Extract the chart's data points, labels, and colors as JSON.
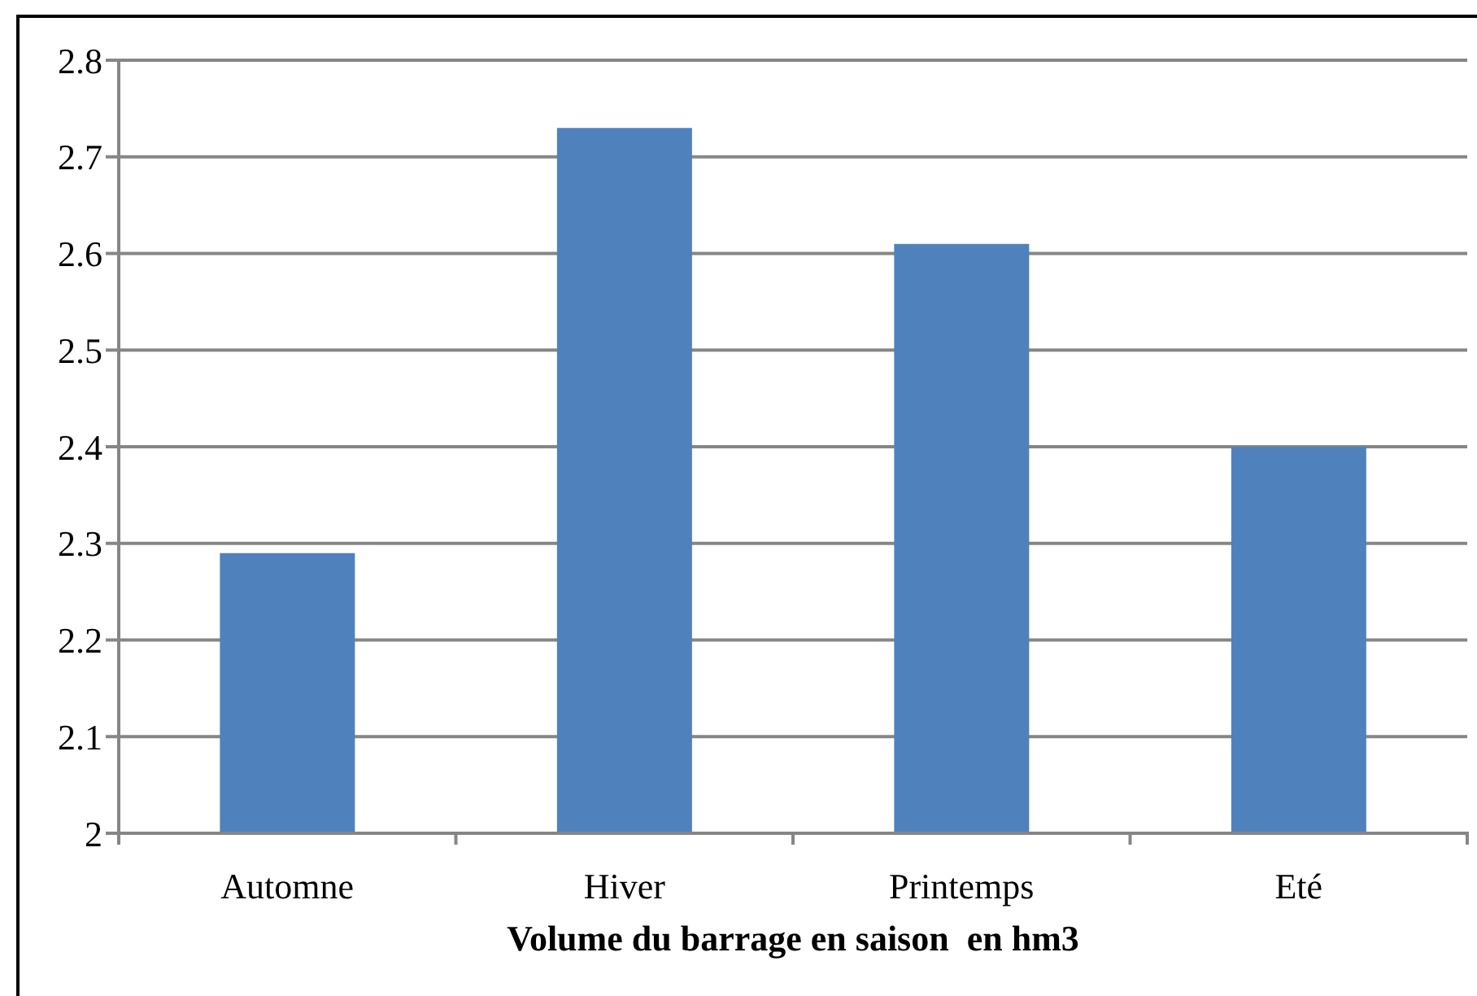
{
  "chart_data": {
    "type": "bar",
    "xlabel": "Volume du barrage en saison  en hm3",
    "categories": [
      "Automne",
      "Hiver",
      "Printemps",
      "Eté"
    ],
    "values": [
      2.29,
      2.73,
      2.61,
      2.4
    ],
    "color": "#4f81bd",
    "ylim": [
      2,
      2.8
    ],
    "yticks": [
      2,
      2.1,
      2.2,
      2.3,
      2.4,
      2.5,
      2.6,
      2.7,
      2.8
    ],
    "grid": "y"
  }
}
